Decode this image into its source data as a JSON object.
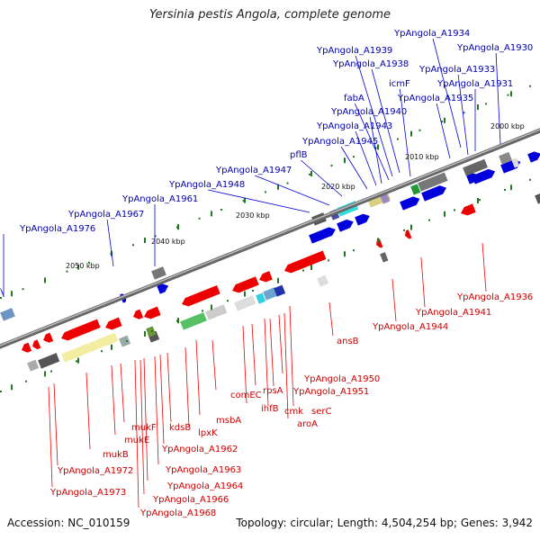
{
  "title": "Yersinia pestis Angola, complete genome",
  "accession": "Accession: NC_010159",
  "summary": "Topology: circular; Length: 4,504,254 bp; Genes: 3,942",
  "colors": {
    "backbone": "#888888",
    "forward_gene": "#0000dd",
    "reverse_gene": "#ee0000",
    "forward_label": "#0000aa",
    "reverse_label": "#cc0000",
    "tick": "#227722"
  },
  "scale_labels": [
    "2000 kbp",
    "2010 kbp",
    "2020 kbp",
    "2030 kbp",
    "2040 kbp",
    "2050 kbp"
  ],
  "forward_labels": [
    "YpAngola_A1934",
    "YpAngola_A1930",
    "YpAngola_A1939",
    "YpAngola_A1938",
    "YpAngola_A1933",
    "icmF",
    "YpAngola_A1931",
    "fabA",
    "YpAngola_A1935",
    "YpAngola_A1940",
    "YpAngola_A1943",
    "YpAngola_A1945",
    "pflB",
    "YpAngola_A1947",
    "YpAngola_A1948",
    "YpAngola_A1961",
    "YpAngola_A1967",
    "YpAngola_A1976"
  ],
  "reverse_labels": [
    "YpAngola_A1936",
    "YpAngola_A1941",
    "YpAngola_A1944",
    "ansB",
    "YpAngola_A1950",
    "YpAngola_A1951",
    "serC",
    "aroA",
    "cmk",
    "rpsA",
    "ihfB",
    "comEC",
    "msbA",
    "lpxK",
    "kdsB",
    "YpAngola_A1962",
    "YpAngola_A1963",
    "YpAngola_A1964",
    "YpAngola_A1966",
    "YpAngola_A1968",
    "mukF",
    "mukE",
    "mukB",
    "YpAngola_A1972",
    "YpAngola_A1973"
  ]
}
